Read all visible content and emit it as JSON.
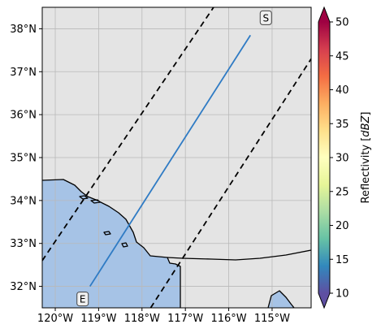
{
  "map": {
    "lon_range": [
      -120.3,
      -114.1
    ],
    "lat_range": [
      31.5,
      38.5
    ],
    "lon_ticks": [
      {
        "value": -120,
        "label": "120°W"
      },
      {
        "value": -119,
        "label": "119°W"
      },
      {
        "value": -118,
        "label": "118°W"
      },
      {
        "value": -117,
        "label": "117°W"
      },
      {
        "value": -116,
        "label": "116°W"
      },
      {
        "value": -115,
        "label": "115°W"
      }
    ],
    "lat_ticks": [
      {
        "value": 32,
        "label": "32°N"
      },
      {
        "value": 33,
        "label": "33°N"
      },
      {
        "value": 34,
        "label": "34°N"
      },
      {
        "value": 35,
        "label": "35°N"
      },
      {
        "value": 36,
        "label": "36°N"
      },
      {
        "value": 37,
        "label": "37°N"
      },
      {
        "value": 38,
        "label": "38°N"
      }
    ],
    "grid": true,
    "land_color": "#e4e4e4",
    "ocean_color": "#a6c3e6"
  },
  "cross_section": {
    "start_label": "E",
    "end_label": "S",
    "start": {
      "lon": -119.2,
      "lat": 32.0
    },
    "end": {
      "lon": -115.5,
      "lat": 37.85
    },
    "color": "#2f7bc4"
  },
  "swath": {
    "edge_color": "#000000",
    "left_edge": [
      {
        "lon": -120.3,
        "lat": 32.6
      },
      {
        "lon": -116.35,
        "lat": 38.5
      }
    ],
    "right_edge": [
      {
        "lon": -117.8,
        "lat": 31.5
      },
      {
        "lon": -114.1,
        "lat": 37.3
      }
    ]
  },
  "colorbar": {
    "label": "Reflectivity [dBZ]",
    "label_main": "Reflectivity ",
    "label_unit": "dBZ",
    "min": 10,
    "max": 50,
    "ticks": [
      "10",
      "15",
      "20",
      "25",
      "30",
      "35",
      "40",
      "45",
      "50"
    ],
    "colormap": "Spectral_r",
    "colors": [
      "#5e4fa2",
      "#3288bd",
      "#66c2a5",
      "#abdda4",
      "#e6f598",
      "#ffffbf",
      "#fee08b",
      "#fdae61",
      "#f46d43",
      "#d53e4f",
      "#9e0142"
    ],
    "extend": "both"
  }
}
